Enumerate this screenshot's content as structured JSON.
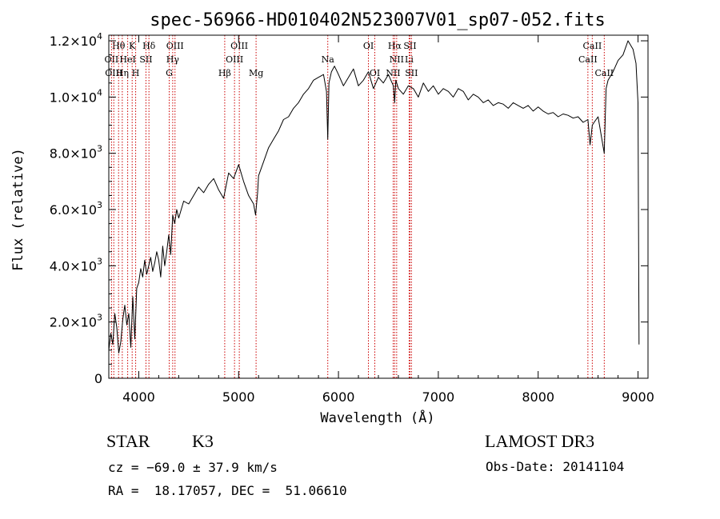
{
  "chart_data": {
    "type": "line",
    "title": "spec-56966-HD010402N523007V01_sp07-052.fits",
    "xlabel": "Wavelength (Å)",
    "ylabel": "Flux (relative)",
    "xlim": [
      3700,
      9100
    ],
    "ylim": [
      0,
      12200
    ],
    "xticks": [
      4000,
      5000,
      6000,
      7000,
      8000,
      9000
    ],
    "yticks": [
      {
        "value": 0,
        "mantissa": "0",
        "exp": ""
      },
      {
        "value": 2000,
        "mantissa": "2.0×10",
        "exp": "3"
      },
      {
        "value": 4000,
        "mantissa": "4.0×10",
        "exp": "3"
      },
      {
        "value": 6000,
        "mantissa": "6.0×10",
        "exp": "3"
      },
      {
        "value": 8000,
        "mantissa": "8.0×10",
        "exp": "3"
      },
      {
        "value": 10000,
        "mantissa": "1.0×10",
        "exp": "4"
      },
      {
        "value": 12000,
        "mantissa": "1.2×10",
        "exp": "4"
      }
    ],
    "series": [
      {
        "name": "spectrum",
        "x": [
          3700,
          3720,
          3740,
          3760,
          3780,
          3800,
          3820,
          3840,
          3860,
          3880,
          3900,
          3920,
          3940,
          3960,
          3980,
          4000,
          4020,
          4040,
          4060,
          4080,
          4100,
          4120,
          4140,
          4160,
          4180,
          4200,
          4220,
          4240,
          4260,
          4280,
          4300,
          4320,
          4340,
          4360,
          4380,
          4400,
          4450,
          4500,
          4550,
          4600,
          4650,
          4700,
          4750,
          4800,
          4850,
          4900,
          4950,
          5000,
          5050,
          5100,
          5150,
          5170,
          5190,
          5200,
          5250,
          5300,
          5350,
          5400,
          5450,
          5500,
          5550,
          5600,
          5650,
          5700,
          5750,
          5800,
          5850,
          5880,
          5893,
          5905,
          5930,
          5960,
          6000,
          6050,
          6100,
          6150,
          6200,
          6250,
          6300,
          6350,
          6400,
          6450,
          6500,
          6550,
          6563,
          6575,
          6600,
          6650,
          6700,
          6750,
          6800,
          6850,
          6900,
          6950,
          7000,
          7050,
          7100,
          7150,
          7200,
          7250,
          7300,
          7350,
          7400,
          7450,
          7500,
          7550,
          7600,
          7650,
          7700,
          7750,
          7800,
          7850,
          7900,
          7950,
          8000,
          8050,
          8100,
          8150,
          8200,
          8250,
          8300,
          8350,
          8400,
          8450,
          8498,
          8520,
          8542,
          8560,
          8600,
          8662,
          8680,
          8700,
          8750,
          8800,
          8850,
          8900,
          8950,
          8980,
          9000,
          9010
        ],
        "y": [
          1000,
          1600,
          1200,
          2300,
          1800,
          900,
          1300,
          2100,
          2600,
          1900,
          2300,
          1100,
          2900,
          1400,
          3200,
          3400,
          3900,
          3600,
          4200,
          3700,
          4000,
          4300,
          3800,
          4100,
          4500,
          4200,
          3600,
          4700,
          4000,
          4500,
          5100,
          4400,
          5800,
          5500,
          6000,
          5700,
          6300,
          6200,
          6500,
          6800,
          6600,
          6900,
          7100,
          6700,
          6400,
          7300,
          7100,
          7600,
          7000,
          6500,
          6200,
          5800,
          6600,
          7200,
          7700,
          8200,
          8500,
          8800,
          9200,
          9300,
          9600,
          9800,
          10100,
          10300,
          10600,
          10700,
          10800,
          10200,
          8500,
          10500,
          10900,
          11100,
          10800,
          10400,
          10700,
          11000,
          10400,
          10600,
          10900,
          10300,
          10700,
          10500,
          10800,
          10400,
          9800,
          10600,
          10300,
          10100,
          10400,
          10300,
          10000,
          10500,
          10200,
          10400,
          10100,
          10300,
          10200,
          10000,
          10300,
          10200,
          9900,
          10100,
          10000,
          9800,
          9900,
          9700,
          9800,
          9750,
          9600,
          9800,
          9700,
          9600,
          9700,
          9500,
          9650,
          9500,
          9400,
          9450,
          9300,
          9400,
          9350,
          9250,
          9300,
          9100,
          9200,
          8300,
          9000,
          9100,
          9300,
          8000,
          10300,
          10600,
          10900,
          11300,
          11500,
          12000,
          11700,
          11200,
          9800,
          1200
        ]
      }
    ],
    "lines": [
      {
        "name": "Hθ",
        "x": 3798,
        "row": 0
      },
      {
        "name": "OII",
        "x": 3727,
        "row": 1
      },
      {
        "name": "OIII",
        "x": 3750,
        "row": 2
      },
      {
        "name": "HeI",
        "x": 3889,
        "row": 1
      },
      {
        "name": "Hη",
        "x": 3835,
        "row": 2
      },
      {
        "name": "K",
        "x": 3934,
        "row": 0
      },
      {
        "name": "SII",
        "x": 4072,
        "row": 1
      },
      {
        "name": "H",
        "x": 3969,
        "row": 2
      },
      {
        "name": "Hδ",
        "x": 4102,
        "row": 0
      },
      {
        "name": "OIII",
        "x": 4363,
        "row": 0
      },
      {
        "name": "Hγ",
        "x": 4340,
        "row": 1
      },
      {
        "name": "G",
        "x": 4305,
        "row": 2
      },
      {
        "name": "OIII",
        "x": 5007,
        "row": 0
      },
      {
        "name": "OIII",
        "x": 4959,
        "row": 1
      },
      {
        "name": "Hβ",
        "x": 4861,
        "row": 2
      },
      {
        "name": "Mg",
        "x": 5175,
        "row": 2
      },
      {
        "name": "Na",
        "x": 5893,
        "row": 1
      },
      {
        "name": "OI",
        "x": 6300,
        "row": 0
      },
      {
        "name": "OI",
        "x": 6364,
        "row": 2
      },
      {
        "name": "Hα",
        "x": 6563,
        "row": 0
      },
      {
        "name": "SII",
        "x": 6716,
        "row": 0
      },
      {
        "name": "NII",
        "x": 6583,
        "row": 1
      },
      {
        "name": "Li",
        "x": 6708,
        "row": 1
      },
      {
        "name": "NII",
        "x": 6548,
        "row": 2
      },
      {
        "name": "SII",
        "x": 6731,
        "row": 2
      },
      {
        "name": "CaII",
        "x": 8542,
        "row": 0
      },
      {
        "name": "CaII",
        "x": 8498,
        "row": 1
      },
      {
        "name": "CaII",
        "x": 8662,
        "row": 2
      }
    ]
  },
  "info": {
    "object_class": "STAR",
    "subclass": "K3",
    "cz": "cz = −69.0 ± 37.9 km/s",
    "radec": "RA =  18.17057, DEC =  51.06610",
    "survey": "LAMOST DR3",
    "obs_date": "Obs-Date: 20141104"
  }
}
